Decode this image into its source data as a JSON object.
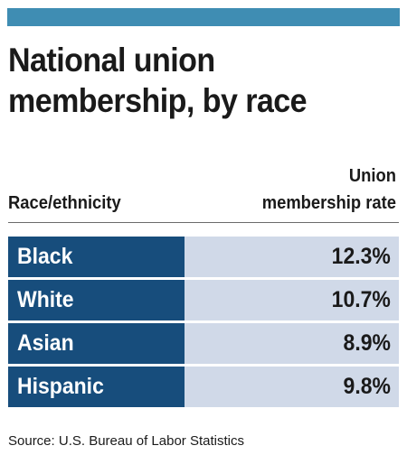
{
  "colors": {
    "accent_bar": "#3f8db3",
    "label_fill": "#174d7c",
    "value_fill": "#d0d9e8",
    "text": "#1a1a1a"
  },
  "title_lines": [
    "National union",
    "membership, by race"
  ],
  "column_headers": {
    "left": "Race/ethnicity",
    "right_line1": "Union",
    "right_line2": "membership rate"
  },
  "rows": [
    {
      "label": "Black",
      "value": "12.3%"
    },
    {
      "label": "White",
      "value": "10.7%"
    },
    {
      "label": "Asian",
      "value": "8.9%"
    },
    {
      "label": "Hispanic",
      "value": "9.8%"
    }
  ],
  "source": "Source: U.S. Bureau of Labor Statistics",
  "chart_data": {
    "type": "table",
    "title": "National union membership, by race",
    "columns": [
      "Race/ethnicity",
      "Union membership rate"
    ],
    "categories": [
      "Black",
      "White",
      "Asian",
      "Hispanic"
    ],
    "values": [
      12.3,
      10.7,
      8.9,
      9.8
    ],
    "unit": "%"
  }
}
